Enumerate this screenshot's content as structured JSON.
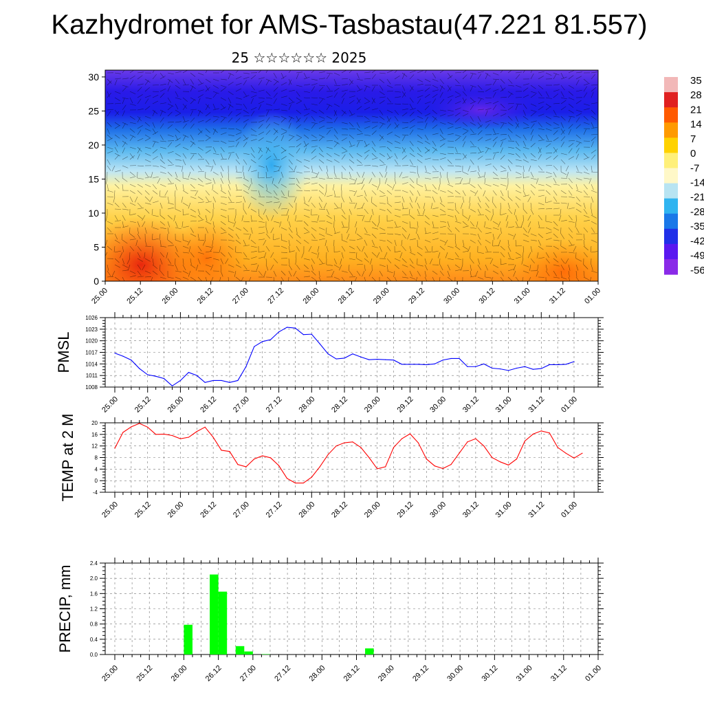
{
  "header": {
    "title": "Kazhydromet for AMS-Tasbastau(47.221 81.557)",
    "subtitle": "25 ☆☆☆☆☆☆ 2025"
  },
  "colors": {
    "pmsl_line": "#0000ff",
    "temp_line": "#ff0000",
    "precip_bar": "#00ff00",
    "colorbar": [
      "#f2b8b8",
      "#e02020",
      "#ff5a00",
      "#ff9a00",
      "#ffd200",
      "#fff07a",
      "#fff8c8",
      "#b8e4f2",
      "#30b4f0",
      "#1a78e8",
      "#2030e8",
      "#5a18f0",
      "#8a2ae8"
    ]
  },
  "chart_data": [
    {
      "type": "heatmap",
      "name": "cross-section",
      "x_ticks": [
        "25.00",
        "25.12",
        "26.00",
        "26.12",
        "27.00",
        "27.12",
        "28.00",
        "28.12",
        "29.00",
        "29.12",
        "30.00",
        "30.12",
        "31.00",
        "31.12",
        "01.00"
      ],
      "y_ticks": [
        "0",
        "5",
        "10",
        "15",
        "20",
        "25",
        "30"
      ],
      "ylim": [
        0,
        31
      ],
      "colorbar_labels": [
        "35",
        "28",
        "21",
        "14",
        "7",
        "0",
        "-7",
        "-14",
        "-21",
        "-28",
        "-35",
        "-42",
        "-49",
        "-56"
      ]
    },
    {
      "type": "line",
      "name": "pmsl",
      "ylabel": "PMSL",
      "y_ticks": [
        "1008",
        "1011",
        "1014",
        "1017",
        "1020",
        "1023",
        "1026"
      ],
      "ylim": [
        1008,
        1026
      ],
      "x_ticks": [
        "25.00",
        "25.12",
        "26.00",
        "26.12",
        "27.00",
        "27.12",
        "28.00",
        "28.12",
        "29.00",
        "29.12",
        "30.00",
        "30.12",
        "31.00",
        "31.12",
        "01.00"
      ],
      "values": [
        1016.8,
        1016.0,
        1015.0,
        1012.8,
        1011.2,
        1010.8,
        1010.2,
        1008.3,
        1009.7,
        1011.8,
        1011.0,
        1009.2,
        1009.7,
        1009.7,
        1009.2,
        1009.7,
        1013.3,
        1018.5,
        1019.8,
        1020.3,
        1022.3,
        1023.5,
        1023.3,
        1021.6,
        1021.7,
        1019.2,
        1016.6,
        1015.3,
        1015.5,
        1016.6,
        1015.8,
        1015.1,
        1015.2,
        1015.1,
        1015.0,
        1013.9,
        1013.9,
        1013.9,
        1013.8,
        1014.0,
        1015.0,
        1015.4,
        1015.4,
        1013.3,
        1013.3,
        1014.0,
        1012.9,
        1012.7,
        1012.3,
        1012.9,
        1013.3,
        1012.6,
        1012.8,
        1013.8,
        1013.8,
        1013.9,
        1014.6
      ]
    },
    {
      "type": "line",
      "name": "temp",
      "ylabel": "TEMP at 2 M",
      "y_ticks": [
        "-4",
        "0",
        "4",
        "8",
        "12",
        "16",
        "20"
      ],
      "ylim": [
        -4,
        20
      ],
      "x_ticks": [
        "25.00",
        "25.12",
        "26.00",
        "26.12",
        "27.00",
        "27.12",
        "28.00",
        "28.12",
        "29.00",
        "29.12",
        "30.00",
        "30.12",
        "31.00",
        "31.12",
        "01.00"
      ],
      "values": [
        11.2,
        16.7,
        18.6,
        19.8,
        18.5,
        16.0,
        16.1,
        15.6,
        14.5,
        15.0,
        17.0,
        18.5,
        15.0,
        10.5,
        10.1,
        5.6,
        4.8,
        7.5,
        8.6,
        7.9,
        5.2,
        0.8,
        -0.8,
        -0.8,
        1.2,
        4.8,
        9.0,
        12.0,
        13.1,
        13.4,
        11.5,
        8.0,
        4.1,
        4.8,
        11.5,
        14.5,
        16.2,
        13.1,
        7.5,
        5.1,
        4.2,
        5.6,
        9.5,
        13.4,
        14.5,
        12.0,
        8.0,
        6.5,
        5.4,
        7.5,
        13.7,
        16.1,
        17.2,
        16.5,
        11.5,
        9.5,
        7.8,
        9.5
      ]
    },
    {
      "type": "bar",
      "name": "precip",
      "ylabel": "PRECIP, mm",
      "y_ticks": [
        "0.0",
        "0.4",
        "0.8",
        "1.2",
        "1.6",
        "2.0",
        "2.4"
      ],
      "ylim": [
        0,
        2.4
      ],
      "x_ticks": [
        "25.00",
        "25.12",
        "26.00",
        "26.12",
        "27.00",
        "27.12",
        "28.00",
        "28.12",
        "29.00",
        "29.12",
        "30.00",
        "30.12",
        "31.00",
        "31.12",
        "01.00"
      ],
      "bars": [
        {
          "t": 8.5,
          "v": 0.78
        },
        {
          "t": 11.5,
          "v": 2.1
        },
        {
          "t": 12.5,
          "v": 1.65
        },
        {
          "t": 14.5,
          "v": 0.22
        },
        {
          "t": 15.5,
          "v": 0.08
        },
        {
          "t": 17.5,
          "v": 0.01
        },
        {
          "t": 29.5,
          "v": 0.16
        }
      ]
    }
  ]
}
